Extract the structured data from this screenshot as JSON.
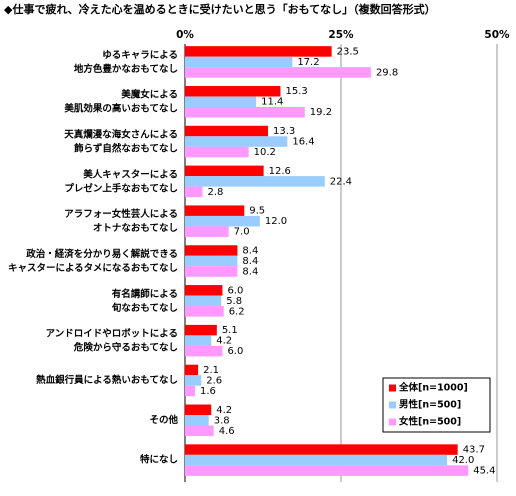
{
  "chart_data": {
    "type": "hbar",
    "title": "◆仕事で疲れ、冷えた心を温めるときに受けたいと思う「おもてなし」（複数回答形式）",
    "categories": [
      "ゆるキャラによる\n地方色豊かなおもてなし",
      "美魔女による\n美肌効果の高いおもてなし",
      "天真爛漫な海女さんによる\n飾らず自然なおもてなし",
      "美人キャスターによる\nプレゼン上手なおもてなし",
      "アラフォー女性芸人による\nオトナなおもてなし",
      "政治・経済を分かり易く解説できる\nキャスターによるタメになるおもてなし",
      "有名講師による\n旬なおもてなし",
      "アンドロイドやロボットによる\n危険から守るおもてなし",
      "熱血銀行員による熱いおもてなし",
      "その他",
      "特になし"
    ],
    "series": [
      {
        "name": "全体[n=1000]",
        "color": "#ff0000",
        "values": [
          23.5,
          15.3,
          13.3,
          12.6,
          9.5,
          8.4,
          6.0,
          5.1,
          2.1,
          4.2,
          43.7
        ],
        "value_labels": [
          "23.5",
          "15.3",
          "13.3",
          "12.6",
          "9.5",
          "8.4",
          "6.0",
          "5.1",
          "2.1",
          "4.2",
          "43.7"
        ]
      },
      {
        "name": "男性[n=500]",
        "color": "#99ccff",
        "values": [
          17.2,
          11.4,
          16.4,
          22.4,
          12.0,
          8.4,
          5.8,
          4.2,
          2.6,
          3.8,
          42.0
        ],
        "value_labels": [
          "17.2",
          "11.4",
          "16.4",
          "22.4",
          "12.0",
          "8.4",
          "5.8",
          "4.2",
          "2.6",
          "3.8",
          "42.0"
        ]
      },
      {
        "name": "女性[n=500]",
        "color": "#ff99ff",
        "values": [
          29.8,
          19.2,
          10.2,
          2.8,
          7.0,
          8.4,
          6.2,
          6.0,
          1.6,
          4.6,
          45.4
        ],
        "value_labels": [
          "29.8",
          "19.2",
          "10.2",
          "2.8",
          "7.0",
          "8.4",
          "6.2",
          "6.0",
          "1.6",
          "4.6",
          "45.4"
        ]
      }
    ],
    "xlim": [
      0,
      50
    ],
    "xticks": [
      {
        "value": 0,
        "label": "0%"
      },
      {
        "value": 25,
        "label": "25%"
      },
      {
        "value": 50,
        "label": "50%"
      }
    ],
    "grid": true,
    "legend": "bottom-right"
  }
}
